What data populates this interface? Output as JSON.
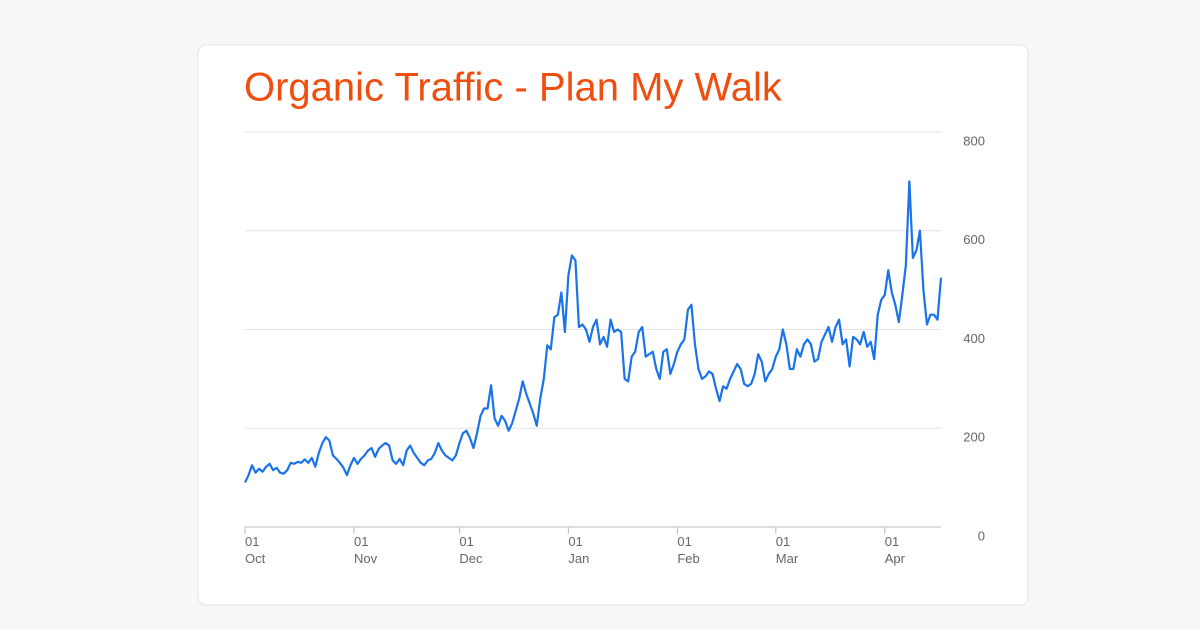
{
  "chart_data": {
    "type": "line",
    "title": "Organic Traffic - Plan My Walk",
    "x": [
      "01 Oct",
      "02 Oct",
      "03 Oct",
      "04 Oct",
      "05 Oct",
      "06 Oct",
      "07 Oct",
      "08 Oct",
      "09 Oct",
      "10 Oct",
      "11 Oct",
      "12 Oct",
      "13 Oct",
      "14 Oct",
      "15 Oct",
      "16 Oct",
      "17 Oct",
      "18 Oct",
      "19 Oct",
      "20 Oct",
      "21 Oct",
      "22 Oct",
      "23 Oct",
      "24 Oct",
      "25 Oct",
      "26 Oct",
      "27 Oct",
      "28 Oct",
      "29 Oct",
      "30 Oct",
      "31 Oct",
      "01 Nov",
      "02 Nov",
      "03 Nov",
      "04 Nov",
      "05 Nov",
      "06 Nov",
      "07 Nov",
      "08 Nov",
      "09 Nov",
      "10 Nov",
      "11 Nov",
      "12 Nov",
      "13 Nov",
      "14 Nov",
      "15 Nov",
      "16 Nov",
      "17 Nov",
      "18 Nov",
      "19 Nov",
      "20 Nov",
      "21 Nov",
      "22 Nov",
      "23 Nov",
      "24 Nov",
      "25 Nov",
      "26 Nov",
      "27 Nov",
      "28 Nov",
      "29 Nov",
      "30 Nov",
      "01 Dec",
      "02 Dec",
      "03 Dec",
      "04 Dec",
      "05 Dec",
      "06 Dec",
      "07 Dec",
      "08 Dec",
      "09 Dec",
      "10 Dec",
      "11 Dec",
      "12 Dec",
      "13 Dec",
      "14 Dec",
      "15 Dec",
      "16 Dec",
      "17 Dec",
      "18 Dec",
      "19 Dec",
      "20 Dec",
      "21 Dec",
      "22 Dec",
      "23 Dec",
      "24 Dec",
      "25 Dec",
      "26 Dec",
      "27 Dec",
      "28 Dec",
      "29 Dec",
      "30 Dec",
      "31 Dec",
      "01 Jan",
      "02 Jan",
      "03 Jan",
      "04 Jan",
      "05 Jan",
      "06 Jan",
      "07 Jan",
      "08 Jan",
      "09 Jan",
      "10 Jan",
      "11 Jan",
      "12 Jan",
      "13 Jan",
      "14 Jan",
      "15 Jan",
      "16 Jan",
      "17 Jan",
      "18 Jan",
      "19 Jan",
      "20 Jan",
      "21 Jan",
      "22 Jan",
      "23 Jan",
      "24 Jan",
      "25 Jan",
      "26 Jan",
      "27 Jan",
      "28 Jan",
      "29 Jan",
      "30 Jan",
      "31 Jan",
      "01 Feb",
      "02 Feb",
      "03 Feb",
      "04 Feb",
      "05 Feb",
      "06 Feb",
      "07 Feb",
      "08 Feb",
      "09 Feb",
      "10 Feb",
      "11 Feb",
      "12 Feb",
      "13 Feb",
      "14 Feb",
      "15 Feb",
      "16 Feb",
      "17 Feb",
      "18 Feb",
      "19 Feb",
      "20 Feb",
      "21 Feb",
      "22 Feb",
      "23 Feb",
      "24 Feb",
      "25 Feb",
      "26 Feb",
      "27 Feb",
      "28 Feb",
      "01 Mar",
      "02 Mar",
      "03 Mar",
      "04 Mar",
      "05 Mar",
      "06 Mar",
      "07 Mar",
      "08 Mar",
      "09 Mar",
      "10 Mar",
      "11 Mar",
      "12 Mar",
      "13 Mar",
      "14 Mar",
      "15 Mar",
      "16 Mar",
      "17 Mar",
      "18 Mar",
      "19 Mar",
      "20 Mar",
      "21 Mar",
      "22 Mar",
      "23 Mar",
      "24 Mar",
      "25 Mar",
      "26 Mar",
      "27 Mar",
      "28 Mar",
      "29 Mar",
      "30 Mar",
      "31 Mar",
      "01 Apr",
      "02 Apr",
      "03 Apr",
      "04 Apr",
      "05 Apr",
      "06 Apr",
      "07 Apr",
      "08 Apr",
      "09 Apr",
      "10 Apr",
      "11 Apr",
      "12 Apr",
      "13 Apr",
      "14 Apr",
      "15 Apr",
      "16 Apr",
      "17 Apr"
    ],
    "values": [
      90,
      105,
      125,
      110,
      118,
      112,
      122,
      128,
      115,
      120,
      110,
      108,
      115,
      130,
      128,
      132,
      130,
      137,
      130,
      140,
      122,
      150,
      170,
      182,
      175,
      145,
      138,
      130,
      120,
      105,
      125,
      140,
      128,
      138,
      145,
      155,
      160,
      142,
      158,
      165,
      170,
      165,
      135,
      128,
      138,
      125,
      155,
      165,
      150,
      140,
      130,
      125,
      135,
      138,
      150,
      170,
      155,
      145,
      140,
      135,
      145,
      170,
      190,
      195,
      180,
      160,
      190,
      225,
      240,
      240,
      287,
      220,
      205,
      225,
      215,
      195,
      210,
      235,
      260,
      295,
      270,
      250,
      230,
      205,
      260,
      300,
      368,
      360,
      425,
      430,
      475,
      395,
      510,
      550,
      540,
      405,
      410,
      400,
      375,
      405,
      420,
      370,
      385,
      365,
      420,
      395,
      400,
      395,
      300,
      295,
      345,
      355,
      395,
      405,
      345,
      350,
      355,
      320,
      300,
      355,
      360,
      310,
      330,
      355,
      370,
      380,
      440,
      450,
      370,
      320,
      300,
      305,
      315,
      310,
      280,
      255,
      285,
      280,
      300,
      315,
      330,
      320,
      290,
      285,
      290,
      310,
      350,
      335,
      295,
      310,
      320,
      345,
      360,
      400,
      370,
      320,
      320,
      360,
      345,
      370,
      380,
      370,
      335,
      340,
      375,
      390,
      405,
      375,
      405,
      420,
      370,
      380,
      325,
      385,
      380,
      370,
      395,
      365,
      375,
      340,
      430,
      460,
      470,
      520,
      475,
      450,
      415,
      470,
      530,
      700,
      545,
      560,
      600,
      480,
      410,
      430,
      430,
      420,
      505
    ],
    "color": "#1a73e8",
    "ylim": [
      0,
      800
    ],
    "yticks": [
      0,
      200,
      400,
      600,
      800
    ],
    "xticks": [
      "01 Oct",
      "01 Nov",
      "01 Dec",
      "01 Jan",
      "01 Feb",
      "01 Mar",
      "01 Apr"
    ],
    "grid": true
  }
}
